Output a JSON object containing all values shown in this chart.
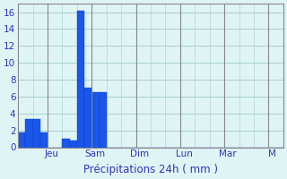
{
  "bar_values": [
    1.8,
    3.3,
    3.3,
    1.8,
    0,
    0,
    1.0,
    0.8,
    16.2,
    7.0,
    6.5,
    6.5,
    0,
    0,
    0,
    0,
    0,
    0,
    0,
    0,
    0,
    0,
    0,
    0,
    0,
    0,
    0,
    0,
    0,
    0,
    0,
    0,
    0,
    0,
    0,
    0
  ],
  "n_bars": 36,
  "xlabel": "Précipitations 24h ( mm )",
  "ylim": [
    0,
    17
  ],
  "yticks": [
    0,
    2,
    4,
    6,
    8,
    10,
    12,
    14,
    16
  ],
  "bar_color": "#1a56e8",
  "bar_edge_color": "#0a40cc",
  "background_color": "#dff4f4",
  "grid_color": "#aacece",
  "text_color": "#3333bb",
  "xlabel_fontsize": 8.5,
  "tick_fontsize": 7.5,
  "day_tick_positions": [
    4,
    10,
    16,
    22,
    28,
    34,
    36
  ],
  "day_tick_labels": [
    "Jeu",
    "Sam",
    "Dim",
    "Lun",
    "Mar",
    "M",
    ""
  ]
}
